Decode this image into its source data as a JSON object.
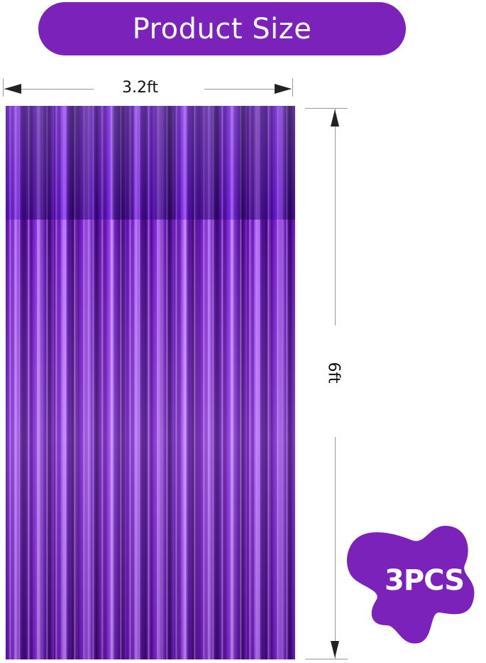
{
  "banner": {
    "title": "Product Size"
  },
  "dimensions": {
    "width_label": "3.2ft",
    "height_label": "6ft"
  },
  "badge": {
    "label": "3PCS"
  },
  "colors": {
    "brand_purple": "#7b22bb",
    "curtain_purple": "#6a1ab8"
  }
}
